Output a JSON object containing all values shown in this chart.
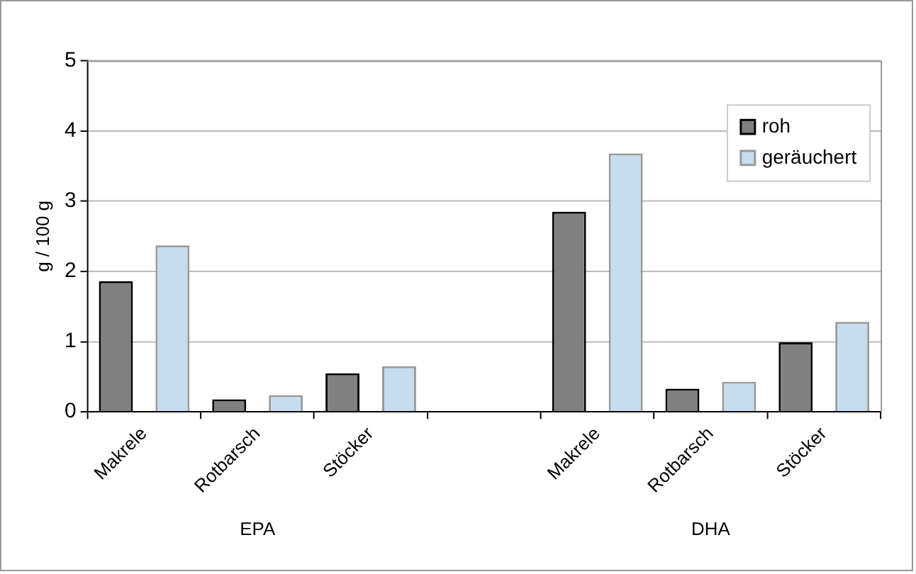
{
  "chart_data": {
    "type": "bar",
    "ylabel": "g / 100 g",
    "categories": [
      "Makrele",
      "Rotbarsch",
      "Stöcker",
      null,
      "Makrele",
      "Rotbarsch",
      "Stöcker"
    ],
    "series": [
      {
        "name": "roh",
        "color": "#808080",
        "values": [
          1.86,
          0.18,
          0.55,
          null,
          2.85,
          0.33,
          0.99
        ]
      },
      {
        "name": "geräuchert",
        "color": "#c6ddf0",
        "values": [
          2.37,
          0.24,
          0.65,
          null,
          3.68,
          0.43,
          1.28
        ]
      }
    ],
    "annotations": [
      "EPA",
      "DHA"
    ],
    "ylim": [
      0,
      5
    ],
    "yticks": [
      0,
      1,
      2,
      3,
      4,
      5
    ],
    "grid": "y",
    "legend": "top right"
  }
}
